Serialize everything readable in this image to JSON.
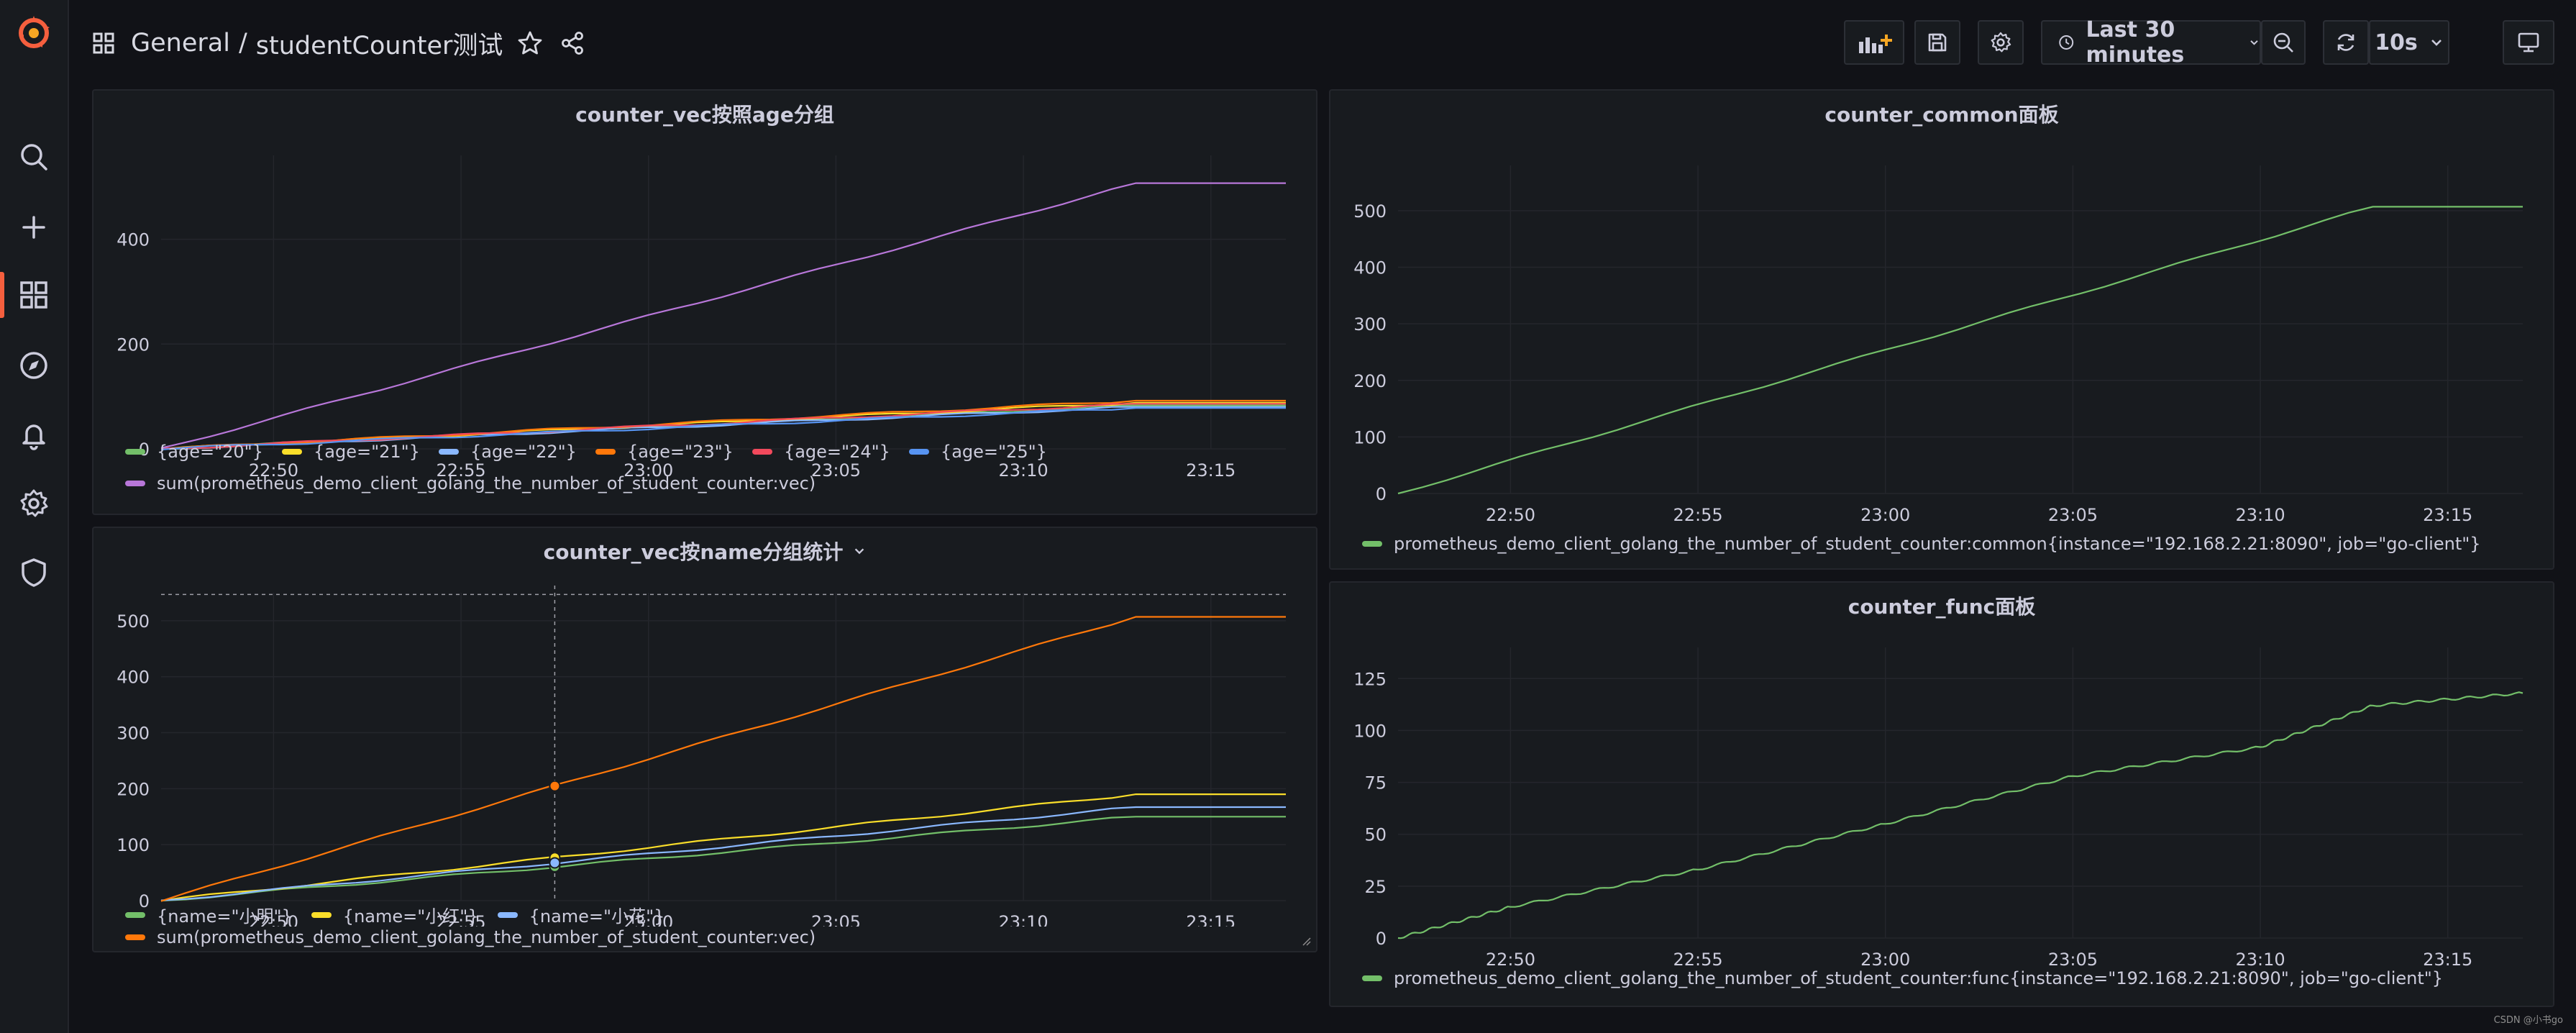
{
  "header": {
    "folder": "General",
    "separator": "/",
    "dashboard_title": "studentCounter测试",
    "time_range": "Last 30 minutes",
    "refresh_interval": "10s"
  },
  "colors": {
    "green": "#73bf69",
    "yellow": "#fade2a",
    "lightblue": "#8ab8ff",
    "orange": "#ff780a",
    "red": "#f2495c",
    "blue": "#5794f2",
    "purple": "#b877d9",
    "brand": "#f55f3e"
  },
  "sidebar": {
    "items": [
      {
        "icon": "grafana-logo-icon"
      },
      {
        "icon": "search-icon"
      },
      {
        "icon": "plus-icon"
      },
      {
        "icon": "dashboards-icon",
        "active": true
      },
      {
        "icon": "explore-compass-icon"
      },
      {
        "icon": "alerting-bell-icon"
      },
      {
        "icon": "configuration-gear-icon"
      },
      {
        "icon": "server-admin-shield-icon"
      }
    ]
  },
  "panels": {
    "age": {
      "title": "counter_vec按照age分组"
    },
    "name": {
      "title": "counter_vec按name分组统计"
    },
    "common": {
      "title": "counter_common面板"
    },
    "func": {
      "title": "counter_func面板"
    }
  },
  "watermark": "CSDN @小书go",
  "chart_data": [
    {
      "id": "age",
      "type": "line",
      "title": "counter_vec按照age分组",
      "x": [
        "22:47",
        "23:13",
        "23:17"
      ],
      "xticks": [
        "22:50",
        "22:55",
        "23:00",
        "23:05",
        "23:10",
        "23:15"
      ],
      "yticks": [
        0,
        200,
        400
      ],
      "ylim": [
        0,
        560
      ],
      "grid": true,
      "legend_placement": "bottom",
      "series": [
        {
          "name": "{age=\"20\"}",
          "color": "green",
          "values": [
            0,
            83,
            83
          ]
        },
        {
          "name": "{age=\"21\"}",
          "color": "yellow",
          "values": [
            0,
            88,
            88
          ]
        },
        {
          "name": "{age=\"22\"}",
          "color": "lightblue",
          "values": [
            0,
            80,
            80
          ]
        },
        {
          "name": "{age=\"23\"}",
          "color": "orange",
          "values": [
            0,
            92,
            92
          ]
        },
        {
          "name": "{age=\"24\"}",
          "color": "red",
          "values": [
            0,
            86,
            86
          ]
        },
        {
          "name": "{age=\"25\"}",
          "color": "blue",
          "values": [
            0,
            78,
            78
          ]
        },
        {
          "name": "sum(prometheus_demo_client_golang_the_number_of_student_counter:vec)",
          "color": "purple",
          "values": [
            0,
            507,
            507
          ]
        }
      ]
    },
    {
      "id": "name",
      "type": "line",
      "title": "counter_vec按name分组统计",
      "x": [
        "22:47",
        "23:13",
        "23:17"
      ],
      "xticks": [
        "22:50",
        "22:55",
        "23:00",
        "23:05",
        "23:10",
        "23:15"
      ],
      "yticks": [
        0,
        100,
        200,
        300,
        400,
        500
      ],
      "ylim": [
        0,
        550
      ],
      "grid": true,
      "legend_placement": "bottom",
      "crosshair_time": "22:57.5",
      "series": [
        {
          "name": "{name=\"小明\"}",
          "color": "green",
          "values": [
            0,
            150,
            150
          ]
        },
        {
          "name": "{name=\"小红\"}",
          "color": "yellow",
          "values": [
            0,
            190,
            190
          ]
        },
        {
          "name": "{name=\"小花\"}",
          "color": "lightblue",
          "values": [
            0,
            167,
            167
          ]
        },
        {
          "name": "sum(prometheus_demo_client_golang_the_number_of_student_counter:vec)",
          "color": "orange",
          "values": [
            0,
            507,
            507
          ]
        }
      ]
    },
    {
      "id": "common",
      "type": "line",
      "title": "counter_common面板",
      "x": [
        "22:47",
        "23:13",
        "23:17"
      ],
      "xticks": [
        "22:50",
        "22:55",
        "23:00",
        "23:05",
        "23:10",
        "23:15"
      ],
      "yticks": [
        0,
        100,
        200,
        300,
        400,
        500
      ],
      "ylim": [
        0,
        580
      ],
      "grid": true,
      "legend_placement": "bottom",
      "series": [
        {
          "name": "prometheus_demo_client_golang_the_number_of_student_counter:common{instance=\"192.168.2.21:8090\", job=\"go-client\"}",
          "color": "green",
          "values": [
            0,
            507,
            507
          ]
        }
      ]
    },
    {
      "id": "func",
      "type": "line",
      "title": "counter_func面板",
      "x": [
        "22:47",
        "22:50",
        "22:55",
        "23:00",
        "23:05",
        "23:10",
        "23:13",
        "23:17"
      ],
      "xticks": [
        "22:50",
        "22:55",
        "23:00",
        "23:05",
        "23:10",
        "23:15"
      ],
      "yticks": [
        0,
        25,
        50,
        75,
        100,
        125
      ],
      "ylim": [
        0,
        140
      ],
      "grid": true,
      "legend_placement": "bottom",
      "series": [
        {
          "name": "prometheus_demo_client_golang_the_number_of_student_counter:func{instance=\"192.168.2.21:8090\", job=\"go-client\"}",
          "color": "green",
          "values": [
            0,
            15,
            33,
            55,
            78,
            92,
            112,
            118
          ]
        }
      ]
    }
  ]
}
